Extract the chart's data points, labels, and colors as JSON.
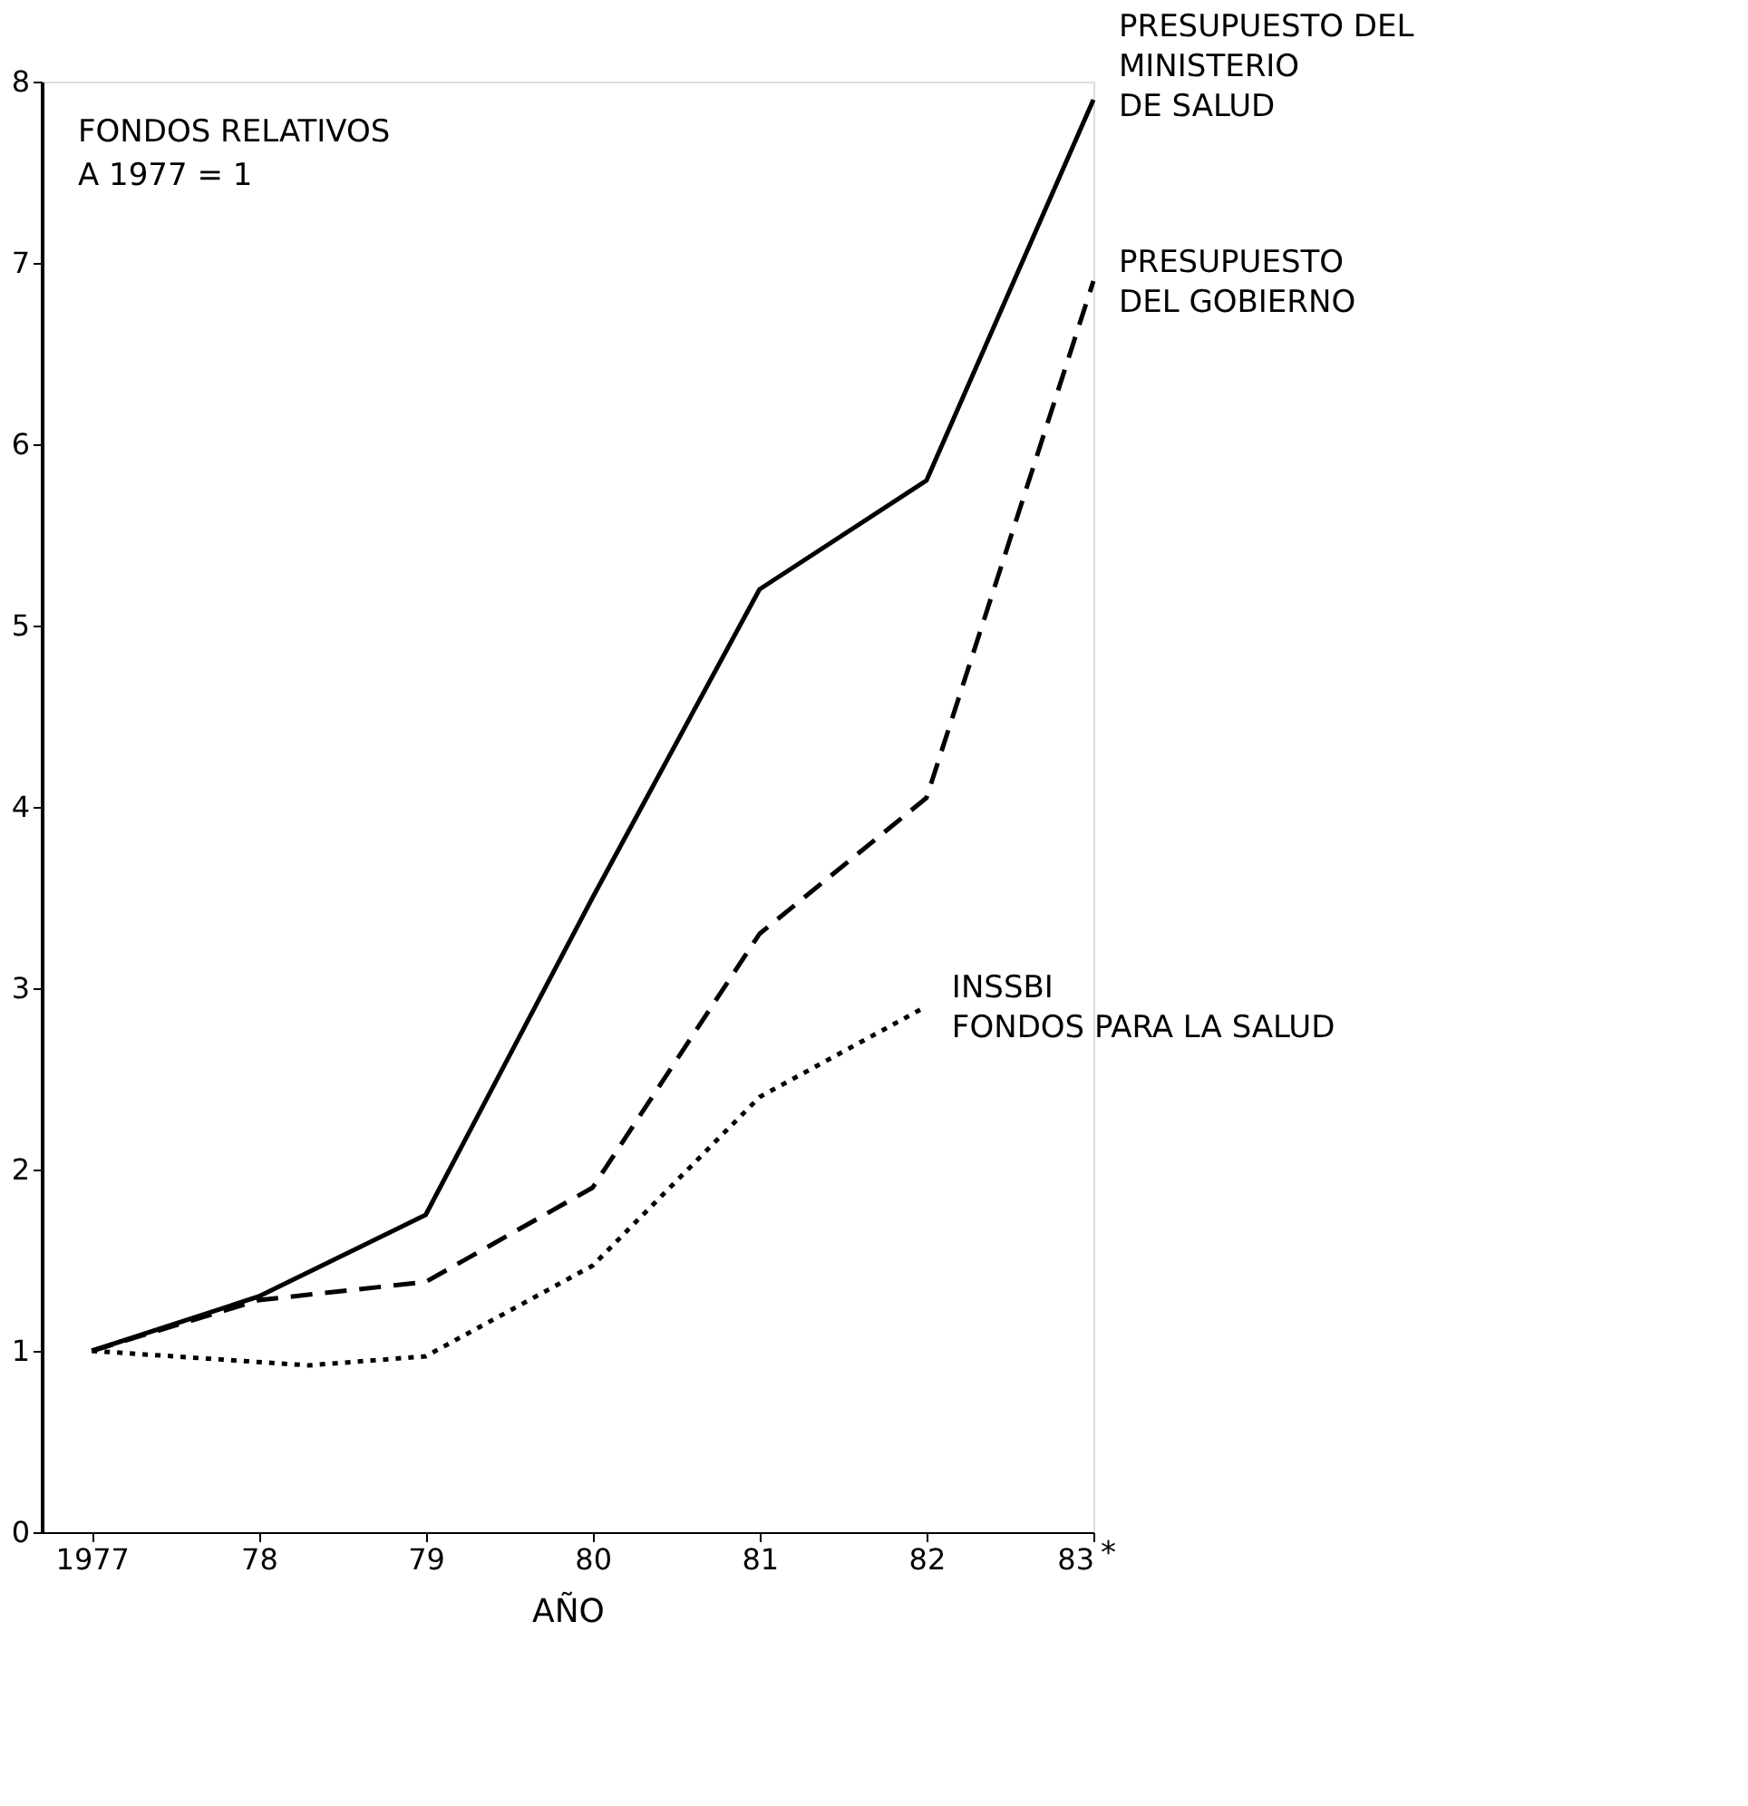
{
  "chart_data": {
    "type": "line",
    "xlabel": "AÑO",
    "annotations": [
      "FONDOS RELATIVOS\nA 1977 = 1",
      "*"
    ],
    "x": [
      1977,
      1978,
      1979,
      1980,
      1981,
      1982,
      1983
    ],
    "xlim": [
      1976.7,
      1983
    ],
    "ylim": [
      0,
      8
    ],
    "xticks": [
      1977,
      {
        "value": 1978,
        "label": "78"
      },
      {
        "value": 1979,
        "label": "79"
      },
      {
        "value": 1980,
        "label": "80"
      },
      {
        "value": 1981,
        "label": "81"
      },
      {
        "value": 1982,
        "label": "82"
      },
      {
        "value": 1983,
        "label": "83"
      }
    ],
    "yticks": [
      0,
      1,
      2,
      3,
      4,
      5,
      6,
      7,
      8
    ],
    "grid": false,
    "legend": false,
    "marker": "none",
    "series": [
      {
        "name": "PRESUPUESTO DEL\nMINISTERIO\nDE SALUD",
        "color": "#000000",
        "line_style": "solid",
        "values": [
          1.0,
          1.3,
          1.75,
          3.5,
          5.2,
          5.8,
          7.9
        ]
      },
      {
        "name": "PRESUPUESTO\nDEL GOBIERNO",
        "color": "#000000",
        "line_style": "dashed",
        "values": [
          1.0,
          1.28,
          1.38,
          1.9,
          3.3,
          4.05,
          6.9
        ]
      },
      {
        "name": "INSSBI\nFONDOS PARA LA SALUD",
        "color": "#000000",
        "line_style": "dotted",
        "x": [
          1977,
          1978.3,
          1979,
          1980,
          1981,
          1982
        ],
        "values": [
          1.0,
          0.92,
          0.97,
          1.47,
          2.4,
          2.9
        ]
      }
    ]
  }
}
